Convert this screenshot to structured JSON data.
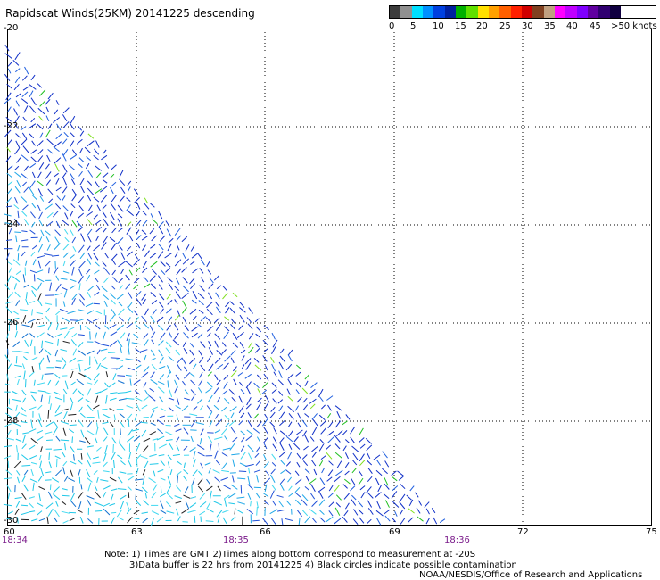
{
  "title": "Rapidscat Winds(25KM) 20141225 descending",
  "legend": {
    "colors": [
      "#3c3c3c",
      "#909090",
      "#00e0ff",
      "#0090ff",
      "#0040e0",
      "#0020a0",
      "#00b000",
      "#60e000",
      "#ffe000",
      "#ffa000",
      "#ff6000",
      "#ff2000",
      "#d00000",
      "#804020",
      "#c0a080",
      "#ff00ff",
      "#c000ff",
      "#8000ff",
      "#6000a0",
      "#300070",
      "#100040"
    ],
    "labels": [
      "0",
      "5",
      "10",
      "15",
      "20",
      "25",
      "30",
      "35",
      "40",
      "45",
      ">50 knots"
    ]
  },
  "map": {
    "lon_ticks": [
      "60",
      "63",
      "66",
      "69",
      "72",
      "75"
    ],
    "lat_ticks": [
      "-20",
      "-22",
      "-24",
      "-26",
      "-28",
      "-30"
    ],
    "times": [
      "18:34",
      "18:35",
      "18:36"
    ]
  },
  "notes": {
    "line1": "Note: 1) Times are GMT 2)Times along bottom correspond to measurement at -20S",
    "line2": "3)Data buffer is 22 hrs from 20141225 4) Black circles indicate possible contamination",
    "credit": "NOAA/NESDIS/Office of Research and Applications"
  }
}
